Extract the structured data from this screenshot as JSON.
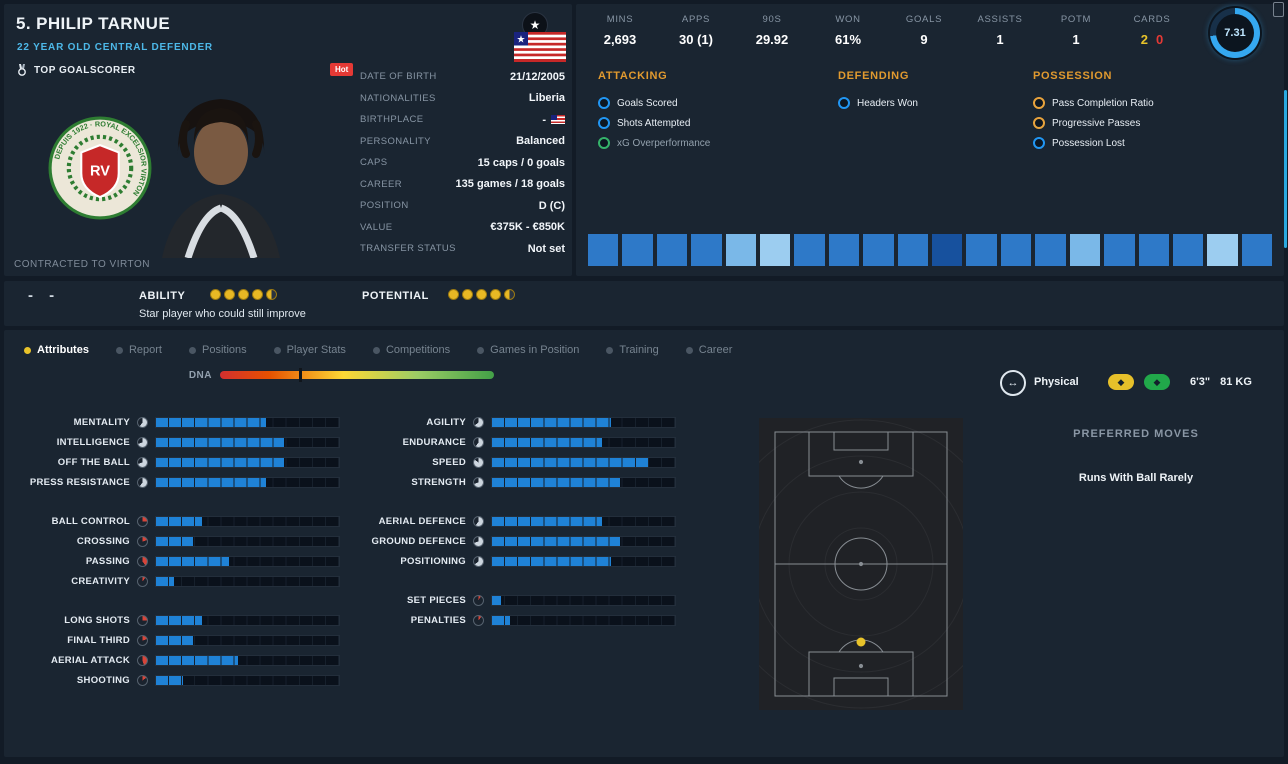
{
  "header": {
    "name": "5. PHILIP TARNUE",
    "subtitle": "22 YEAR OLD  CENTRAL DEFENDER",
    "top_scorer": "TOP GOALSCORER",
    "contracted": "CONTRACTED TO VIRTON",
    "hot": "Hot"
  },
  "info_rows": [
    {
      "label": "DATE OF BIRTH",
      "value": "21/12/2005"
    },
    {
      "label": "NATIONALITIES",
      "value": "Liberia"
    },
    {
      "label": "BIRTHPLACE",
      "value": "-",
      "flag": true
    },
    {
      "label": "PERSONALITY",
      "value": "Balanced"
    },
    {
      "label": "CAPS",
      "value": "15 caps / 0 goals"
    },
    {
      "label": "CAREER",
      "value": "135 games / 18 goals"
    },
    {
      "label": "POSITION",
      "value": "D (C)"
    },
    {
      "label": "VALUE",
      "value": "€375K - €850K"
    },
    {
      "label": "TRANSFER STATUS",
      "value": "Not set"
    }
  ],
  "stats": [
    {
      "label": "MINS",
      "value": "2,693"
    },
    {
      "label": "APPS",
      "value": "30 (1)"
    },
    {
      "label": "90S",
      "value": "29.92"
    },
    {
      "label": "WON",
      "value": "61%"
    },
    {
      "label": "GOALS",
      "value": "9"
    },
    {
      "label": "ASSISTS",
      "value": "1"
    },
    {
      "label": "POTM",
      "value": "1"
    },
    {
      "label": "CARDS",
      "parts": [
        {
          "text": "2",
          "color": "#e8c32a"
        },
        {
          "text": "0",
          "color": "#e53935"
        }
      ]
    }
  ],
  "rating": {
    "value": "7.31",
    "percent": 73,
    "ring_color": "#35a8f0",
    "ring_bg": "#173049"
  },
  "stat_categories": [
    {
      "title": "ATTACKING",
      "items": [
        {
          "label": "Goals Scored",
          "dot": "#2196f3"
        },
        {
          "label": "Shots Attempted",
          "dot": "#2196f3"
        },
        {
          "label": "xG Overperformance",
          "dot": "#35b36a",
          "muted": true
        }
      ]
    },
    {
      "title": "DEFENDING",
      "items": [
        {
          "label": "Headers Won",
          "dot": "#2196f3"
        }
      ]
    },
    {
      "title": "POSSESSION",
      "items": [
        {
          "label": "Pass Completion Ratio",
          "dot": "#e8a33d"
        },
        {
          "label": "Progressive Passes",
          "dot": "#e8a33d"
        },
        {
          "label": "Possession Lost",
          "dot": "#2196f3"
        }
      ]
    }
  ],
  "heat_squares": [
    "#2e79c8",
    "#2e79c8",
    "#2e79c8",
    "#2e79c8",
    "#7ab8e8",
    "#9ccdf0",
    "#2e79c8",
    "#2e79c8",
    "#2e79c8",
    "#2e79c8",
    "#17519e",
    "#2e79c8",
    "#2e79c8",
    "#2e79c8",
    "#7ab8e8",
    "#2e79c8",
    "#2e79c8",
    "#2e79c8",
    "#9ccdf0",
    "#2e79c8"
  ],
  "form_placeholder": "-  -",
  "ability": {
    "label": "ABILITY",
    "stars": 4.5,
    "note": "Star player who could still improve"
  },
  "potential": {
    "label": "POTENTIAL",
    "stars": 4.5
  },
  "tabs": [
    {
      "label": "Attributes",
      "active": true
    },
    {
      "label": "Report"
    },
    {
      "label": "Positions"
    },
    {
      "label": "Player Stats"
    },
    {
      "label": "Competitions"
    },
    {
      "label": "Games in Position"
    },
    {
      "label": "Training"
    },
    {
      "label": "Career"
    }
  ],
  "dna": {
    "label": "DNA",
    "marker_percent": 29
  },
  "physical": {
    "label": "Physical",
    "height": "6'3\"",
    "weight": "81 KG"
  },
  "attributes": {
    "max": 20,
    "low_threshold": 10,
    "fill_color": "#1f82d6",
    "left": [
      [
        {
          "label": "MENTALITY",
          "value": 12
        },
        {
          "label": "INTELLIGENCE",
          "value": 14
        },
        {
          "label": "OFF THE BALL",
          "value": 14
        },
        {
          "label": "PRESS RESISTANCE",
          "value": 12
        }
      ],
      [
        {
          "label": "BALL CONTROL",
          "value": 5
        },
        {
          "label": "CROSSING",
          "value": 4
        },
        {
          "label": "PASSING",
          "value": 8
        },
        {
          "label": "CREATIVITY",
          "value": 2
        }
      ],
      [
        {
          "label": "LONG SHOTS",
          "value": 5
        },
        {
          "label": "FINAL THIRD",
          "value": 4
        },
        {
          "label": "AERIAL ATTACK",
          "value": 9
        },
        {
          "label": "SHOOTING",
          "value": 3
        }
      ]
    ],
    "right": [
      [
        {
          "label": "AGILITY",
          "value": 13
        },
        {
          "label": "ENDURANCE",
          "value": 12
        },
        {
          "label": "SPEED",
          "value": 17
        },
        {
          "label": "STRENGTH",
          "value": 14
        }
      ],
      [
        {
          "label": "AERIAL DEFENCE",
          "value": 12
        },
        {
          "label": "GROUND DEFENCE",
          "value": 14
        },
        {
          "label": "POSITIONING",
          "value": 13
        }
      ],
      [
        {
          "label": "SET PIECES",
          "value": 1
        },
        {
          "label": "PENALTIES",
          "value": 2
        }
      ]
    ]
  },
  "preferred_moves": {
    "title": "PREFERRED MOVES",
    "items": [
      "Runs With Ball Rarely"
    ]
  }
}
